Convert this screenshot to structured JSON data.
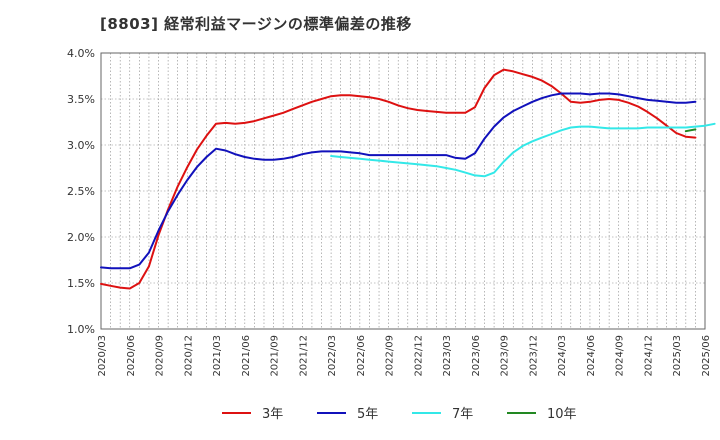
{
  "chart_data": {
    "type": "line",
    "title": "[8803]  経常利益マージンの標準偏差の推移",
    "xlabel": "",
    "ylabel": "",
    "ylim": [
      1.0,
      4.0
    ],
    "y_ticks": [
      "1.0%",
      "1.5%",
      "2.0%",
      "2.5%",
      "3.0%",
      "3.5%",
      "4.0%"
    ],
    "y_tick_values": [
      1.0,
      1.5,
      2.0,
      2.5,
      3.0,
      3.5,
      4.0
    ],
    "x_ticks": [
      "2020/03",
      "2020/06",
      "2020/09",
      "2020/12",
      "2021/03",
      "2021/06",
      "2021/09",
      "2021/12",
      "2022/03",
      "2022/06",
      "2022/09",
      "2022/12",
      "2023/03",
      "2023/06",
      "2023/09",
      "2023/12",
      "2024/03",
      "2024/06",
      "2024/09",
      "2024/12",
      "2025/03",
      "2025/06"
    ],
    "grid": true,
    "legend_position": "bottom",
    "series": [
      {
        "name": "3年",
        "color": "#dd1111",
        "start_index": 0,
        "values": [
          1.49,
          1.47,
          1.45,
          1.44,
          1.5,
          1.68,
          2.02,
          2.3,
          2.55,
          2.76,
          2.95,
          3.1,
          3.23,
          3.24,
          3.23,
          3.24,
          3.26,
          3.29,
          3.32,
          3.35,
          3.39,
          3.43,
          3.47,
          3.5,
          3.53,
          3.54,
          3.54,
          3.53,
          3.52,
          3.5,
          3.47,
          3.43,
          3.4,
          3.38,
          3.37,
          3.36,
          3.35,
          3.35,
          3.35,
          3.41,
          3.62,
          3.76,
          3.82,
          3.8,
          3.77,
          3.74,
          3.7,
          3.64,
          3.56,
          3.47,
          3.46,
          3.47,
          3.49,
          3.5,
          3.49,
          3.46,
          3.42,
          3.36,
          3.29,
          3.21,
          3.13,
          3.09,
          3.08
        ]
      },
      {
        "name": "5年",
        "color": "#1111bb",
        "start_index": 0,
        "values": [
          1.67,
          1.66,
          1.66,
          1.66,
          1.7,
          1.83,
          2.07,
          2.28,
          2.46,
          2.62,
          2.76,
          2.87,
          2.96,
          2.94,
          2.9,
          2.87,
          2.85,
          2.84,
          2.84,
          2.85,
          2.87,
          2.9,
          2.92,
          2.93,
          2.93,
          2.93,
          2.92,
          2.91,
          2.89,
          2.89,
          2.89,
          2.89,
          2.89,
          2.89,
          2.89,
          2.89,
          2.89,
          2.86,
          2.85,
          2.91,
          3.07,
          3.2,
          3.3,
          3.37,
          3.42,
          3.47,
          3.51,
          3.54,
          3.56,
          3.56,
          3.56,
          3.55,
          3.56,
          3.56,
          3.55,
          3.53,
          3.51,
          3.49,
          3.48,
          3.47,
          3.46,
          3.46,
          3.47
        ]
      },
      {
        "name": "7年",
        "color": "#33e8e8",
        "start_index": 24,
        "values": [
          2.88,
          2.87,
          2.86,
          2.85,
          2.84,
          2.83,
          2.82,
          2.81,
          2.8,
          2.79,
          2.78,
          2.77,
          2.75,
          2.73,
          2.7,
          2.67,
          2.66,
          2.7,
          2.82,
          2.92,
          2.99,
          3.04,
          3.08,
          3.12,
          3.16,
          3.19,
          3.2,
          3.2,
          3.19,
          3.18,
          3.18,
          3.18,
          3.18,
          3.19,
          3.19,
          3.19,
          3.19,
          3.19,
          3.2,
          3.21,
          3.23
        ]
      },
      {
        "name": "10年",
        "color": "#228822",
        "start_index": 61,
        "values": [
          3.15,
          3.17
        ]
      }
    ]
  }
}
